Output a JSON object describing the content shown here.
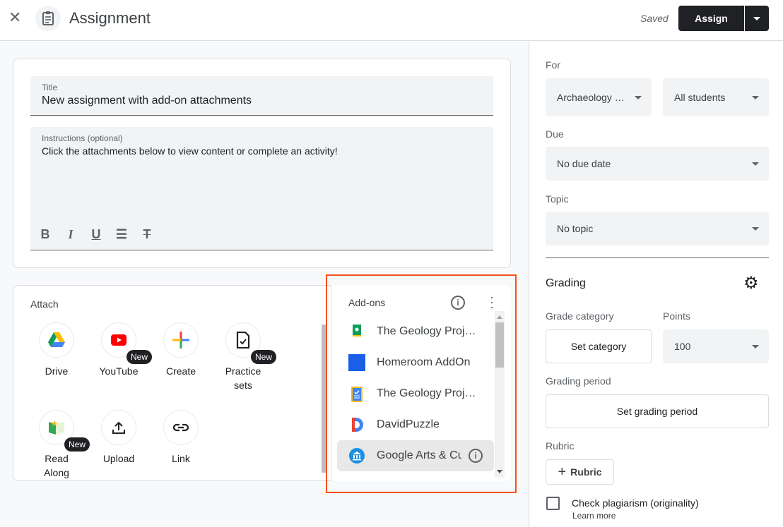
{
  "header": {
    "title": "Assignment",
    "status": "Saved",
    "assign_label": "Assign"
  },
  "form": {
    "title_label": "Title",
    "title_value": "New assignment with add-on attachments",
    "instructions_label": "Instructions (optional)",
    "instructions_value": "Click the attachments below to view content or complete an activity!",
    "toolbar": [
      "bold-icon",
      "italic-icon",
      "underline-icon",
      "bulleted-list-icon",
      "clear-formatting-icon"
    ]
  },
  "attach": {
    "label": "Attach",
    "items": [
      {
        "label": "Drive",
        "icon": "drive-icon",
        "new": false
      },
      {
        "label": "YouTube",
        "icon": "youtube-icon",
        "new": true
      },
      {
        "label": "Create",
        "icon": "create-plus-icon",
        "new": false
      },
      {
        "label": "Practice sets",
        "icon": "practice-sets-icon",
        "new": true
      },
      {
        "label": "Read Along",
        "icon": "read-along-icon",
        "new": true
      },
      {
        "label": "Upload",
        "icon": "upload-icon",
        "new": false
      },
      {
        "label": "Link",
        "icon": "link-icon",
        "new": false
      }
    ],
    "new_badge": "New"
  },
  "addons": {
    "label": "Add-ons",
    "items": [
      {
        "label": "The Geology Proj…",
        "icon": "google-classroom-icon"
      },
      {
        "label": "Homeroom AddOn",
        "icon": "homeroom-square-icon"
      },
      {
        "label": "The Geology Proj…",
        "icon": "clipboard-icon"
      },
      {
        "label": "DavidPuzzle",
        "icon": "davidpuzzle-icon"
      },
      {
        "label": "Google Arts & Cu",
        "icon": "arts-culture-icon"
      }
    ],
    "highlight_color": "#f4511e"
  },
  "sidebar": {
    "for_label": "For",
    "class_value": "Archaeology …",
    "students_value": "All students",
    "due_label": "Due",
    "due_value": "No due date",
    "topic_label": "Topic",
    "topic_value": "No topic",
    "grading_label": "Grading",
    "grade_category_label": "Grade category",
    "set_category": "Set category",
    "points_label": "Points",
    "points_value": "100",
    "grading_period_label": "Grading period",
    "set_grading_period": "Set grading period",
    "rubric_label": "Rubric",
    "rubric_button": "Rubric",
    "plagiarism_label": "Check plagiarism (originality)",
    "learn_more": "Learn more"
  }
}
